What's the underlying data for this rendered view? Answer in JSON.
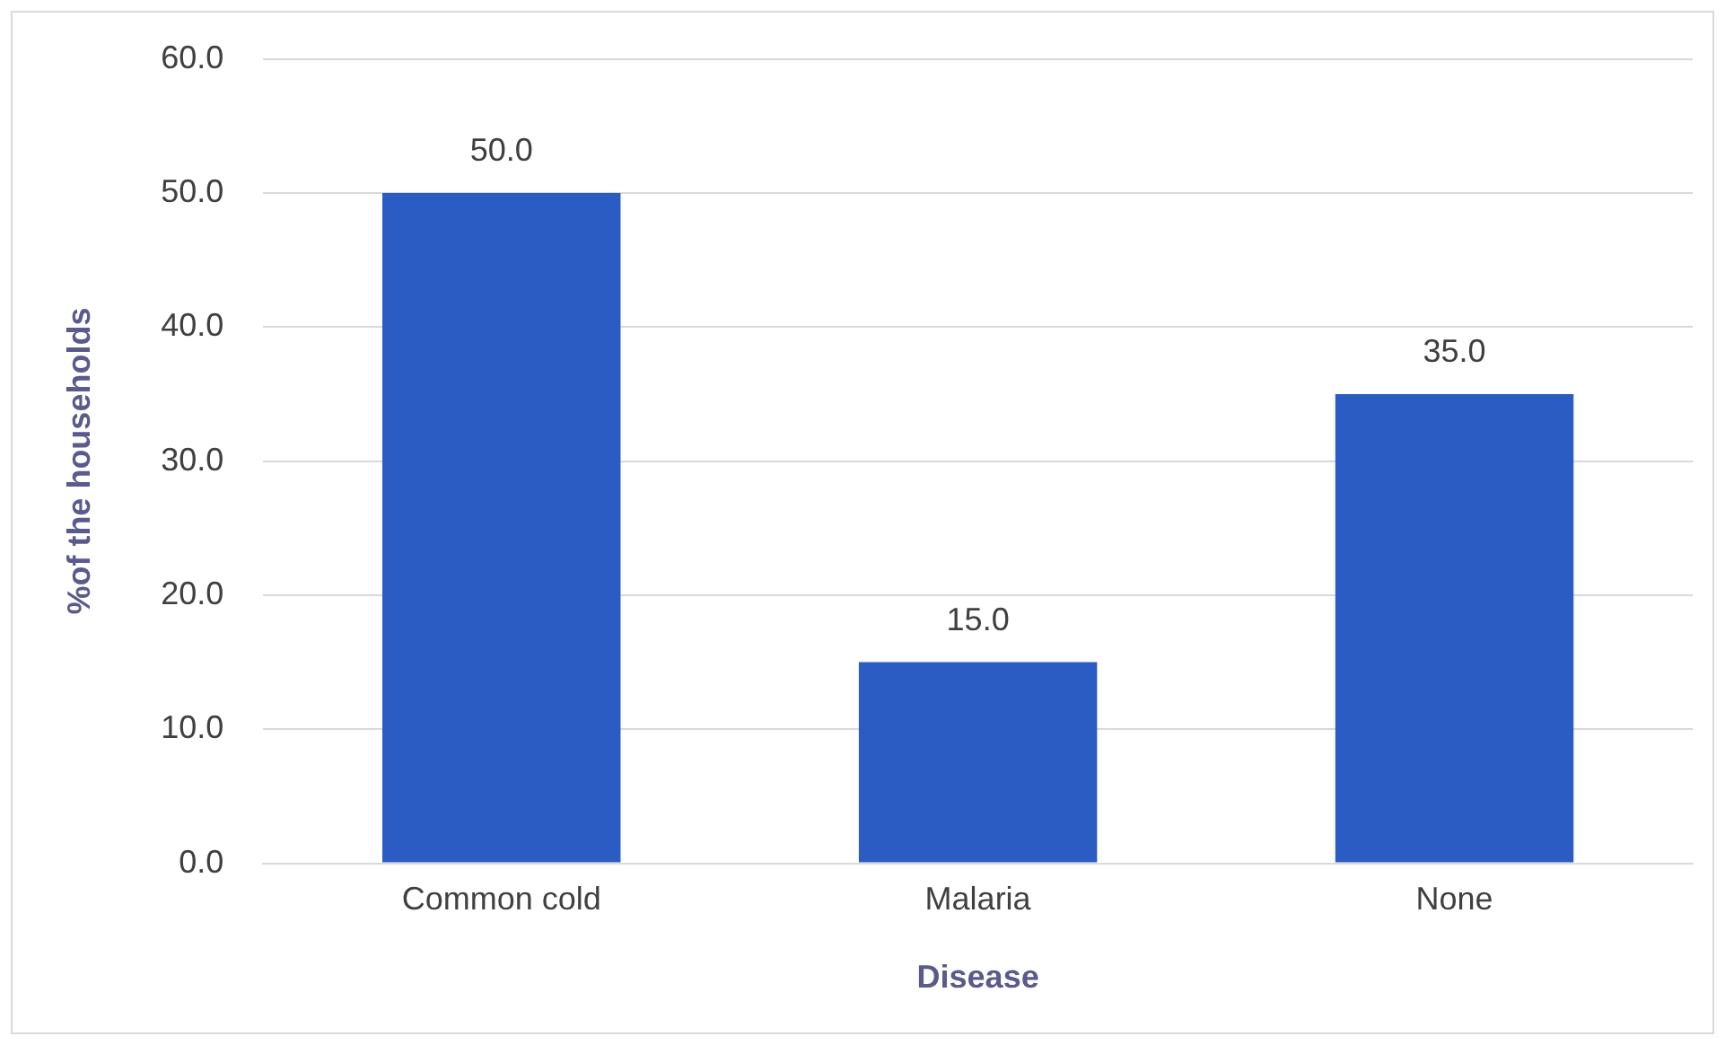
{
  "chart_data": {
    "type": "bar",
    "xlabel": "Disease",
    "ylabel": "%of the households",
    "categories": [
      "Common cold",
      "Malaria",
      "None"
    ],
    "values": [
      50,
      15,
      35
    ],
    "color": "#2a5cc4",
    "value_labels": [
      "50.0",
      "15.0",
      "35.0"
    ],
    "ylim": [
      0,
      60
    ],
    "yticks": [
      {
        "value": 0,
        "label": "0.0"
      },
      {
        "value": 10,
        "label": "10.0"
      },
      {
        "value": 20,
        "label": "20.0"
      },
      {
        "value": 30,
        "label": "30.0"
      },
      {
        "value": 40,
        "label": "40.0"
      },
      {
        "value": 50,
        "label": "50.0"
      },
      {
        "value": 60,
        "label": "60.0"
      }
    ],
    "grid": "y",
    "legend": false
  }
}
